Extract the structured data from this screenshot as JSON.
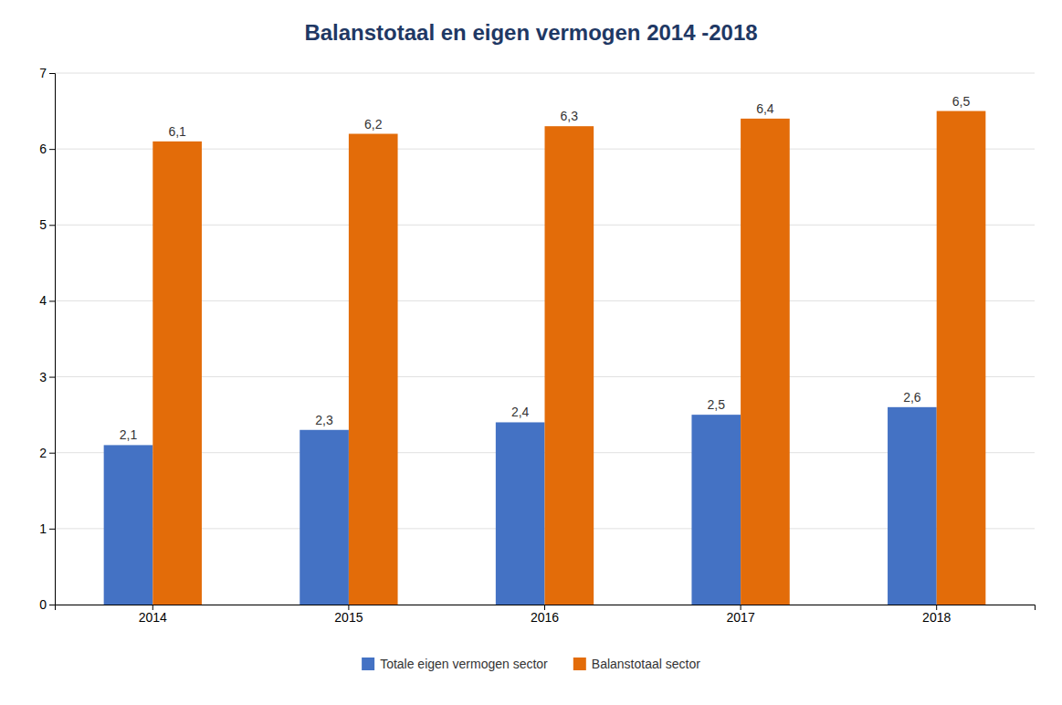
{
  "chart_data": {
    "type": "bar",
    "title": "Balanstotaal en eigen vermogen 2014 -2018",
    "categories": [
      "2014",
      "2015",
      "2016",
      "2017",
      "2018"
    ],
    "series": [
      {
        "name": "Totale eigen vermogen sector",
        "color": "#4472c4",
        "values": [
          2.1,
          2.3,
          2.4,
          2.5,
          2.6
        ],
        "value_labels": [
          "2,1",
          "2,3",
          "2,4",
          "2,5",
          "2,6"
        ]
      },
      {
        "name": "Balanstotaal sector",
        "color": "#e36c09",
        "values": [
          6.1,
          6.2,
          6.3,
          6.4,
          6.5
        ],
        "value_labels": [
          "6,1",
          "6,2",
          "6,3",
          "6,4",
          "6,5"
        ]
      }
    ],
    "ylim": [
      0,
      7
    ],
    "yticks": [
      0,
      1,
      2,
      3,
      4,
      5,
      6,
      7
    ],
    "grid": true,
    "legend": "bottom",
    "data_labels": true
  }
}
